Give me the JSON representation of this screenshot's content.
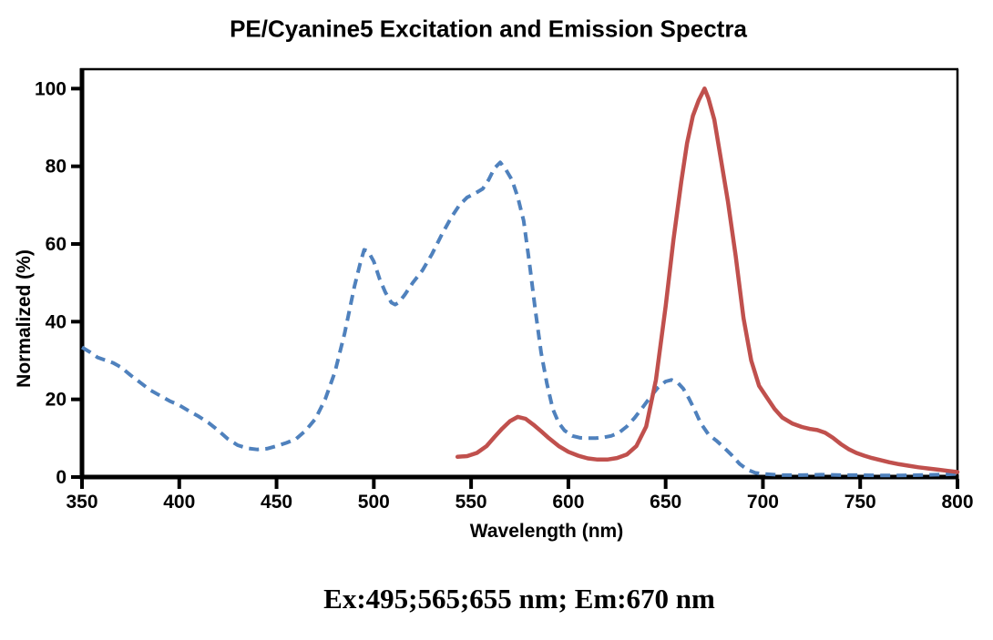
{
  "chart_data": {
    "type": "line",
    "title": "PE/Cyanine5 Excitation and Emission Spectra",
    "xlabel": "Wavelength (nm)",
    "ylabel": "Normalized (%)",
    "annotation": "Ex:495;565;655 nm; Em:670 nm",
    "xlim": [
      350,
      800
    ],
    "ylim": [
      0,
      105
    ],
    "x_ticks": [
      350,
      400,
      450,
      500,
      550,
      600,
      650,
      700,
      750,
      800
    ],
    "y_ticks": [
      0,
      20,
      40,
      60,
      80,
      100
    ],
    "grid": false,
    "legend": "none",
    "axis_color": "#000000",
    "background_color": "#ffffff",
    "series": [
      {
        "name": "Excitation",
        "style": "dashed",
        "color": "#4F81BD",
        "width": 4,
        "points": [
          [
            350,
            33.4
          ],
          [
            354,
            32.2
          ],
          [
            358,
            30.8
          ],
          [
            362,
            30.1
          ],
          [
            366,
            29.4
          ],
          [
            370,
            28.3
          ],
          [
            375,
            26.2
          ],
          [
            380,
            24.3
          ],
          [
            385,
            22.4
          ],
          [
            390,
            21.0
          ],
          [
            395,
            19.6
          ],
          [
            400,
            18.5
          ],
          [
            405,
            17.0
          ],
          [
            410,
            15.6
          ],
          [
            415,
            14.0
          ],
          [
            420,
            12.0
          ],
          [
            425,
            9.8
          ],
          [
            430,
            8.2
          ],
          [
            435,
            7.4
          ],
          [
            440,
            7.1
          ],
          [
            445,
            7.3
          ],
          [
            450,
            8.0
          ],
          [
            455,
            8.8
          ],
          [
            460,
            9.8
          ],
          [
            465,
            12.0
          ],
          [
            470,
            15.0
          ],
          [
            475,
            20.0
          ],
          [
            480,
            27.0
          ],
          [
            485,
            37.0
          ],
          [
            490,
            49.0
          ],
          [
            493,
            55.0
          ],
          [
            495,
            58.5
          ],
          [
            497,
            58.2
          ],
          [
            500,
            55.5
          ],
          [
            503,
            51.0
          ],
          [
            506,
            47.5
          ],
          [
            509,
            44.9
          ],
          [
            511,
            44.4
          ],
          [
            513,
            45.0
          ],
          [
            516,
            47.0
          ],
          [
            520,
            50.0
          ],
          [
            525,
            53.2
          ],
          [
            530,
            57.5
          ],
          [
            535,
            62.5
          ],
          [
            540,
            67.0
          ],
          [
            544,
            70.0
          ],
          [
            548,
            72.0
          ],
          [
            552,
            73.0
          ],
          [
            556,
            74.2
          ],
          [
            559,
            76.5
          ],
          [
            562,
            79.5
          ],
          [
            565,
            81.0
          ],
          [
            568,
            79.0
          ],
          [
            571,
            76.5
          ],
          [
            574,
            72.0
          ],
          [
            577,
            66.0
          ],
          [
            580,
            55.0
          ],
          [
            583,
            43.0
          ],
          [
            586,
            32.0
          ],
          [
            589,
            24.0
          ],
          [
            592,
            17.5
          ],
          [
            595,
            14.0
          ],
          [
            598,
            12.0
          ],
          [
            602,
            10.6
          ],
          [
            606,
            10.1
          ],
          [
            610,
            10.0
          ],
          [
            614,
            10.0
          ],
          [
            618,
            10.2
          ],
          [
            622,
            10.6
          ],
          [
            626,
            11.4
          ],
          [
            630,
            13.0
          ],
          [
            634,
            15.2
          ],
          [
            638,
            17.8
          ],
          [
            642,
            20.5
          ],
          [
            646,
            23.0
          ],
          [
            650,
            24.6
          ],
          [
            653,
            25.0
          ],
          [
            656,
            24.4
          ],
          [
            659,
            22.8
          ],
          [
            662,
            20.2
          ],
          [
            665,
            17.2
          ],
          [
            668,
            13.9
          ],
          [
            672,
            11.0
          ],
          [
            676,
            9.4
          ],
          [
            680,
            7.6
          ],
          [
            684,
            5.6
          ],
          [
            688,
            3.4
          ],
          [
            692,
            1.9
          ],
          [
            696,
            1.1
          ],
          [
            700,
            0.8
          ],
          [
            710,
            0.5
          ],
          [
            720,
            0.5
          ],
          [
            730,
            0.6
          ],
          [
            740,
            0.5
          ],
          [
            750,
            0.5
          ],
          [
            760,
            0.4
          ],
          [
            770,
            0.4
          ],
          [
            780,
            0.5
          ],
          [
            790,
            0.6
          ],
          [
            800,
            0.8
          ]
        ]
      },
      {
        "name": "Emission",
        "style": "solid",
        "color": "#C0504D",
        "width": 4.5,
        "points": [
          [
            543,
            5.2
          ],
          [
            548,
            5.4
          ],
          [
            553,
            6.2
          ],
          [
            558,
            8.0
          ],
          [
            562,
            10.3
          ],
          [
            566,
            12.5
          ],
          [
            570,
            14.4
          ],
          [
            574,
            15.5
          ],
          [
            578,
            15.0
          ],
          [
            582,
            13.5
          ],
          [
            586,
            11.8
          ],
          [
            590,
            10.0
          ],
          [
            595,
            8.0
          ],
          [
            600,
            6.5
          ],
          [
            605,
            5.5
          ],
          [
            610,
            4.8
          ],
          [
            615,
            4.5
          ],
          [
            620,
            4.5
          ],
          [
            625,
            4.9
          ],
          [
            630,
            5.8
          ],
          [
            635,
            8.0
          ],
          [
            640,
            13.0
          ],
          [
            645,
            25.0
          ],
          [
            650,
            44.0
          ],
          [
            654,
            61.0
          ],
          [
            658,
            76.0
          ],
          [
            661,
            86.0
          ],
          [
            664,
            93.0
          ],
          [
            667,
            97.0
          ],
          [
            670,
            100.0
          ],
          [
            672,
            97.5
          ],
          [
            675,
            92.0
          ],
          [
            678,
            83.0
          ],
          [
            682,
            71.0
          ],
          [
            686,
            57.0
          ],
          [
            690,
            41.0
          ],
          [
            694,
            30.0
          ],
          [
            698,
            23.5
          ],
          [
            702,
            20.5
          ],
          [
            706,
            17.5
          ],
          [
            710,
            15.3
          ],
          [
            715,
            13.8
          ],
          [
            720,
            12.9
          ],
          [
            724,
            12.4
          ],
          [
            728,
            12.1
          ],
          [
            732,
            11.4
          ],
          [
            736,
            10.1
          ],
          [
            740,
            8.5
          ],
          [
            744,
            7.2
          ],
          [
            748,
            6.2
          ],
          [
            752,
            5.5
          ],
          [
            756,
            4.9
          ],
          [
            760,
            4.4
          ],
          [
            765,
            3.8
          ],
          [
            770,
            3.3
          ],
          [
            775,
            2.9
          ],
          [
            780,
            2.5
          ],
          [
            785,
            2.2
          ],
          [
            790,
            1.9
          ],
          [
            795,
            1.6
          ],
          [
            800,
            1.3
          ]
        ]
      }
    ]
  }
}
